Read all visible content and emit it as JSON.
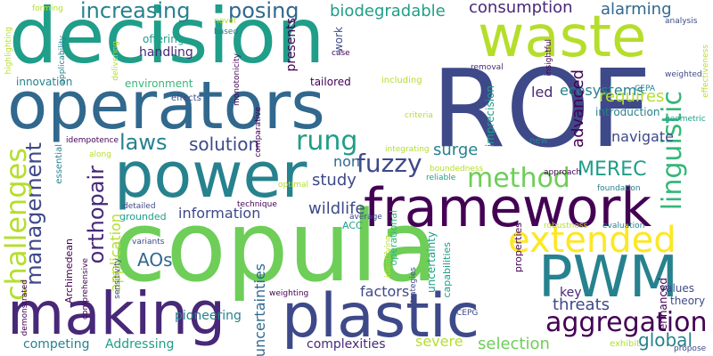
{
  "words": [
    "decision",
    "operators",
    "ROF",
    "waste",
    "power",
    "copula",
    "framework",
    "making",
    "plastic",
    "PWM",
    "extended",
    "linguistic",
    "management",
    "method",
    "aggregation",
    "fuzzy",
    "rung",
    "laws",
    "solution",
    "challenges",
    "orthopair",
    "increasing",
    "posing",
    "biodegradable",
    "consumption",
    "alarming",
    "ecosystems",
    "advanced",
    "requires",
    "navigate",
    "surge",
    "MEREC",
    "study",
    "information",
    "AOs",
    "wildlife",
    "application",
    "uncertainties",
    "pioneering",
    "factors",
    "threats",
    "global",
    "selection",
    "severe",
    "complexities",
    "competing",
    "Addressing",
    "uncertainty",
    "imprecision",
    "key",
    "values",
    "theory",
    "enhanced",
    "led",
    "non",
    "introduction",
    "handling",
    "offering",
    "presents",
    "environment",
    "innovation",
    "tailored",
    "including",
    "removal",
    "insightful",
    "forming",
    "highlighting",
    "applicability",
    "delivering",
    "novel",
    "based",
    "case",
    "work",
    "effects",
    "monotonicity",
    "idempotence",
    "essential",
    "Archimedean",
    "demonstrated",
    "comprehensive",
    "sensitivity",
    "variants",
    "detailed",
    "grounded",
    "technique",
    "optimal",
    "ACC",
    "integrating",
    "boundedness",
    "reliable",
    "average",
    "weighting",
    "strategies",
    "identifying",
    "operational",
    "capabilities",
    "properties",
    "robustness",
    "evaluation",
    "foundation",
    "approach",
    "new",
    "criteria",
    "CEPA",
    "weighted",
    "geometric",
    "analysis",
    "effectiveness",
    "comparative",
    "along",
    "CEPG",
    "exhibit",
    "propose"
  ],
  "colors": {
    "background": "#ffffff",
    "palette": [
      "#440154",
      "#482878",
      "#3e4989",
      "#31688e",
      "#26828e",
      "#1f9e89",
      "#35b779",
      "#6ece58",
      "#b5de2b",
      "#fde725"
    ]
  }
}
